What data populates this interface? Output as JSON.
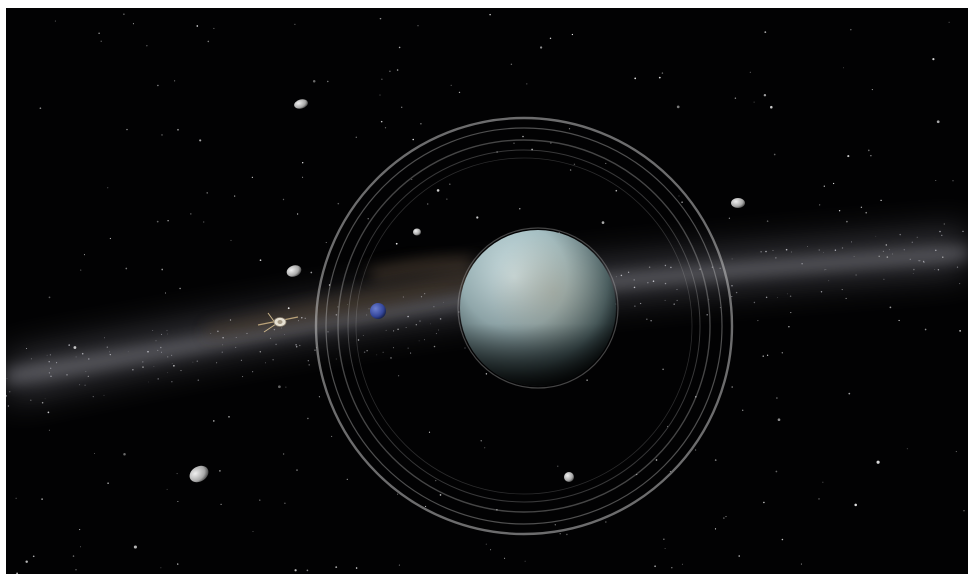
{
  "scene": {
    "background_color": "#020203",
    "galaxy_band_color": "#8a8a92",
    "galaxy_dust_color": "#5a4636",
    "planet": {
      "name_icon": "uranus-planet",
      "color_light": "#c9dde0",
      "color_mid": "#97b0b3",
      "color_dark": "#1a2426"
    },
    "ring_color": "#bfbfbf",
    "moons": [
      {
        "icon": "moon-small-icon",
        "color": "#cfcfcf"
      },
      {
        "icon": "moon-small-icon",
        "color": "#cfcfcf"
      },
      {
        "icon": "moon-small-icon",
        "color": "#cfcfcf"
      },
      {
        "icon": "moon-small-icon",
        "color": "#cfcfcf"
      },
      {
        "icon": "moon-small-icon",
        "color": "#cfcfcf"
      },
      {
        "icon": "moon-small-icon",
        "color": "#cfcfcf"
      }
    ],
    "blue_moon": {
      "icon": "blue-moon-icon",
      "color": "#3a4fa0"
    },
    "spacecraft": {
      "icon": "spacecraft-icon",
      "color": "#d8d0c0"
    }
  }
}
